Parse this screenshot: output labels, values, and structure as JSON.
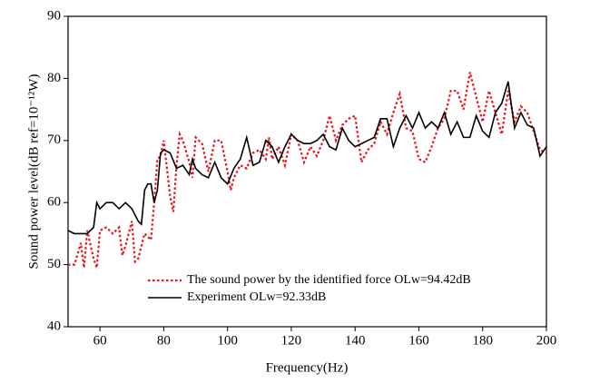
{
  "chart_data": {
    "type": "line",
    "xlabel": "Frequency(Hz)",
    "ylabel": "Sound power level(dB ref=10⁻¹²W)",
    "xlim": [
      50,
      200
    ],
    "xticks": [
      60,
      80,
      100,
      120,
      140,
      160,
      180,
      200
    ],
    "ylim": [
      40,
      90
    ],
    "yticks": [
      40,
      50,
      60,
      70,
      80,
      90
    ],
    "series": [
      {
        "name": "The sound power by the identified force OLw=94.42dB",
        "color": "#e8141c",
        "dash": true,
        "x": [
          50,
          52,
          54,
          55,
          56,
          58,
          59,
          60,
          62,
          64,
          66,
          67,
          68,
          70,
          71,
          72,
          74,
          76,
          77,
          78,
          79,
          80,
          82,
          83,
          84,
          85,
          86,
          88,
          89,
          90,
          92,
          94,
          96,
          98,
          100,
          101,
          102,
          104,
          106,
          108,
          110,
          112,
          113,
          114,
          116,
          118,
          120,
          122,
          124,
          126,
          128,
          130,
          132,
          134,
          136,
          138,
          140,
          142,
          144,
          146,
          148,
          150,
          152,
          154,
          156,
          158,
          160,
          162,
          164,
          166,
          168,
          170,
          172,
          174,
          176,
          178,
          180,
          182,
          184,
          186,
          188,
          190,
          192,
          194,
          196,
          198,
          200
        ],
        "values": [
          50,
          50,
          53.5,
          49.5,
          55.5,
          51,
          49.5,
          55.5,
          56,
          55,
          56,
          51.5,
          53,
          57,
          50.5,
          51,
          55,
          54,
          60,
          67,
          67.5,
          70,
          61,
          58.5,
          66,
          71,
          70,
          66.5,
          64,
          70.5,
          69.5,
          65,
          70,
          70,
          65,
          62,
          64,
          66,
          65.5,
          68,
          68.5,
          67,
          70.5,
          67,
          69,
          66,
          71,
          70,
          66.5,
          69,
          67.5,
          70,
          74,
          70,
          72.5,
          73.5,
          74,
          66.5,
          68.5,
          69.5,
          73,
          71,
          74.5,
          77.5,
          72,
          71.5,
          67,
          66.5,
          69,
          72,
          73.5,
          78,
          78,
          75,
          81,
          77,
          73,
          78,
          74.5,
          71,
          78,
          73,
          75.5,
          74.5,
          71.5,
          68.5,
          68
        ]
      },
      {
        "name": "Experiment OLw=92.33dB",
        "color": "#000000",
        "dash": false,
        "x": [
          50,
          52,
          54,
          56,
          58,
          59,
          60,
          62,
          64,
          66,
          68,
          70,
          72,
          73,
          74,
          75,
          76,
          77,
          78,
          79,
          80,
          82,
          84,
          86,
          88,
          89,
          90,
          92,
          94,
          96,
          98,
          100,
          102,
          104,
          106,
          108,
          110,
          112,
          114,
          116,
          118,
          120,
          122,
          124,
          126,
          128,
          130,
          132,
          134,
          136,
          138,
          140,
          142,
          144,
          146,
          148,
          150,
          152,
          154,
          156,
          158,
          160,
          162,
          164,
          166,
          168,
          170,
          172,
          174,
          176,
          178,
          180,
          182,
          184,
          186,
          188,
          190,
          192,
          194,
          196,
          198,
          200
        ],
        "values": [
          55.5,
          55,
          55,
          55,
          56,
          60,
          59,
          60,
          60,
          59,
          60,
          59,
          57,
          56.5,
          62,
          63,
          63,
          60,
          62,
          68,
          68.5,
          68,
          65.5,
          66,
          64.5,
          67,
          65.5,
          64.5,
          64,
          66.5,
          64,
          63,
          65.5,
          67,
          70.5,
          66,
          66.5,
          70,
          69,
          66.5,
          69,
          71,
          70,
          69.5,
          69.5,
          70,
          71,
          69,
          68.5,
          72,
          70,
          69,
          69.5,
          70,
          70.5,
          73.5,
          73.5,
          69,
          72,
          74,
          72,
          74.5,
          72,
          73,
          72,
          74.5,
          71,
          73,
          70.5,
          70.5,
          74,
          71.5,
          70.5,
          74.5,
          76,
          79.5,
          72,
          74.5,
          72.5,
          72,
          67.5,
          69
        ]
      }
    ]
  }
}
